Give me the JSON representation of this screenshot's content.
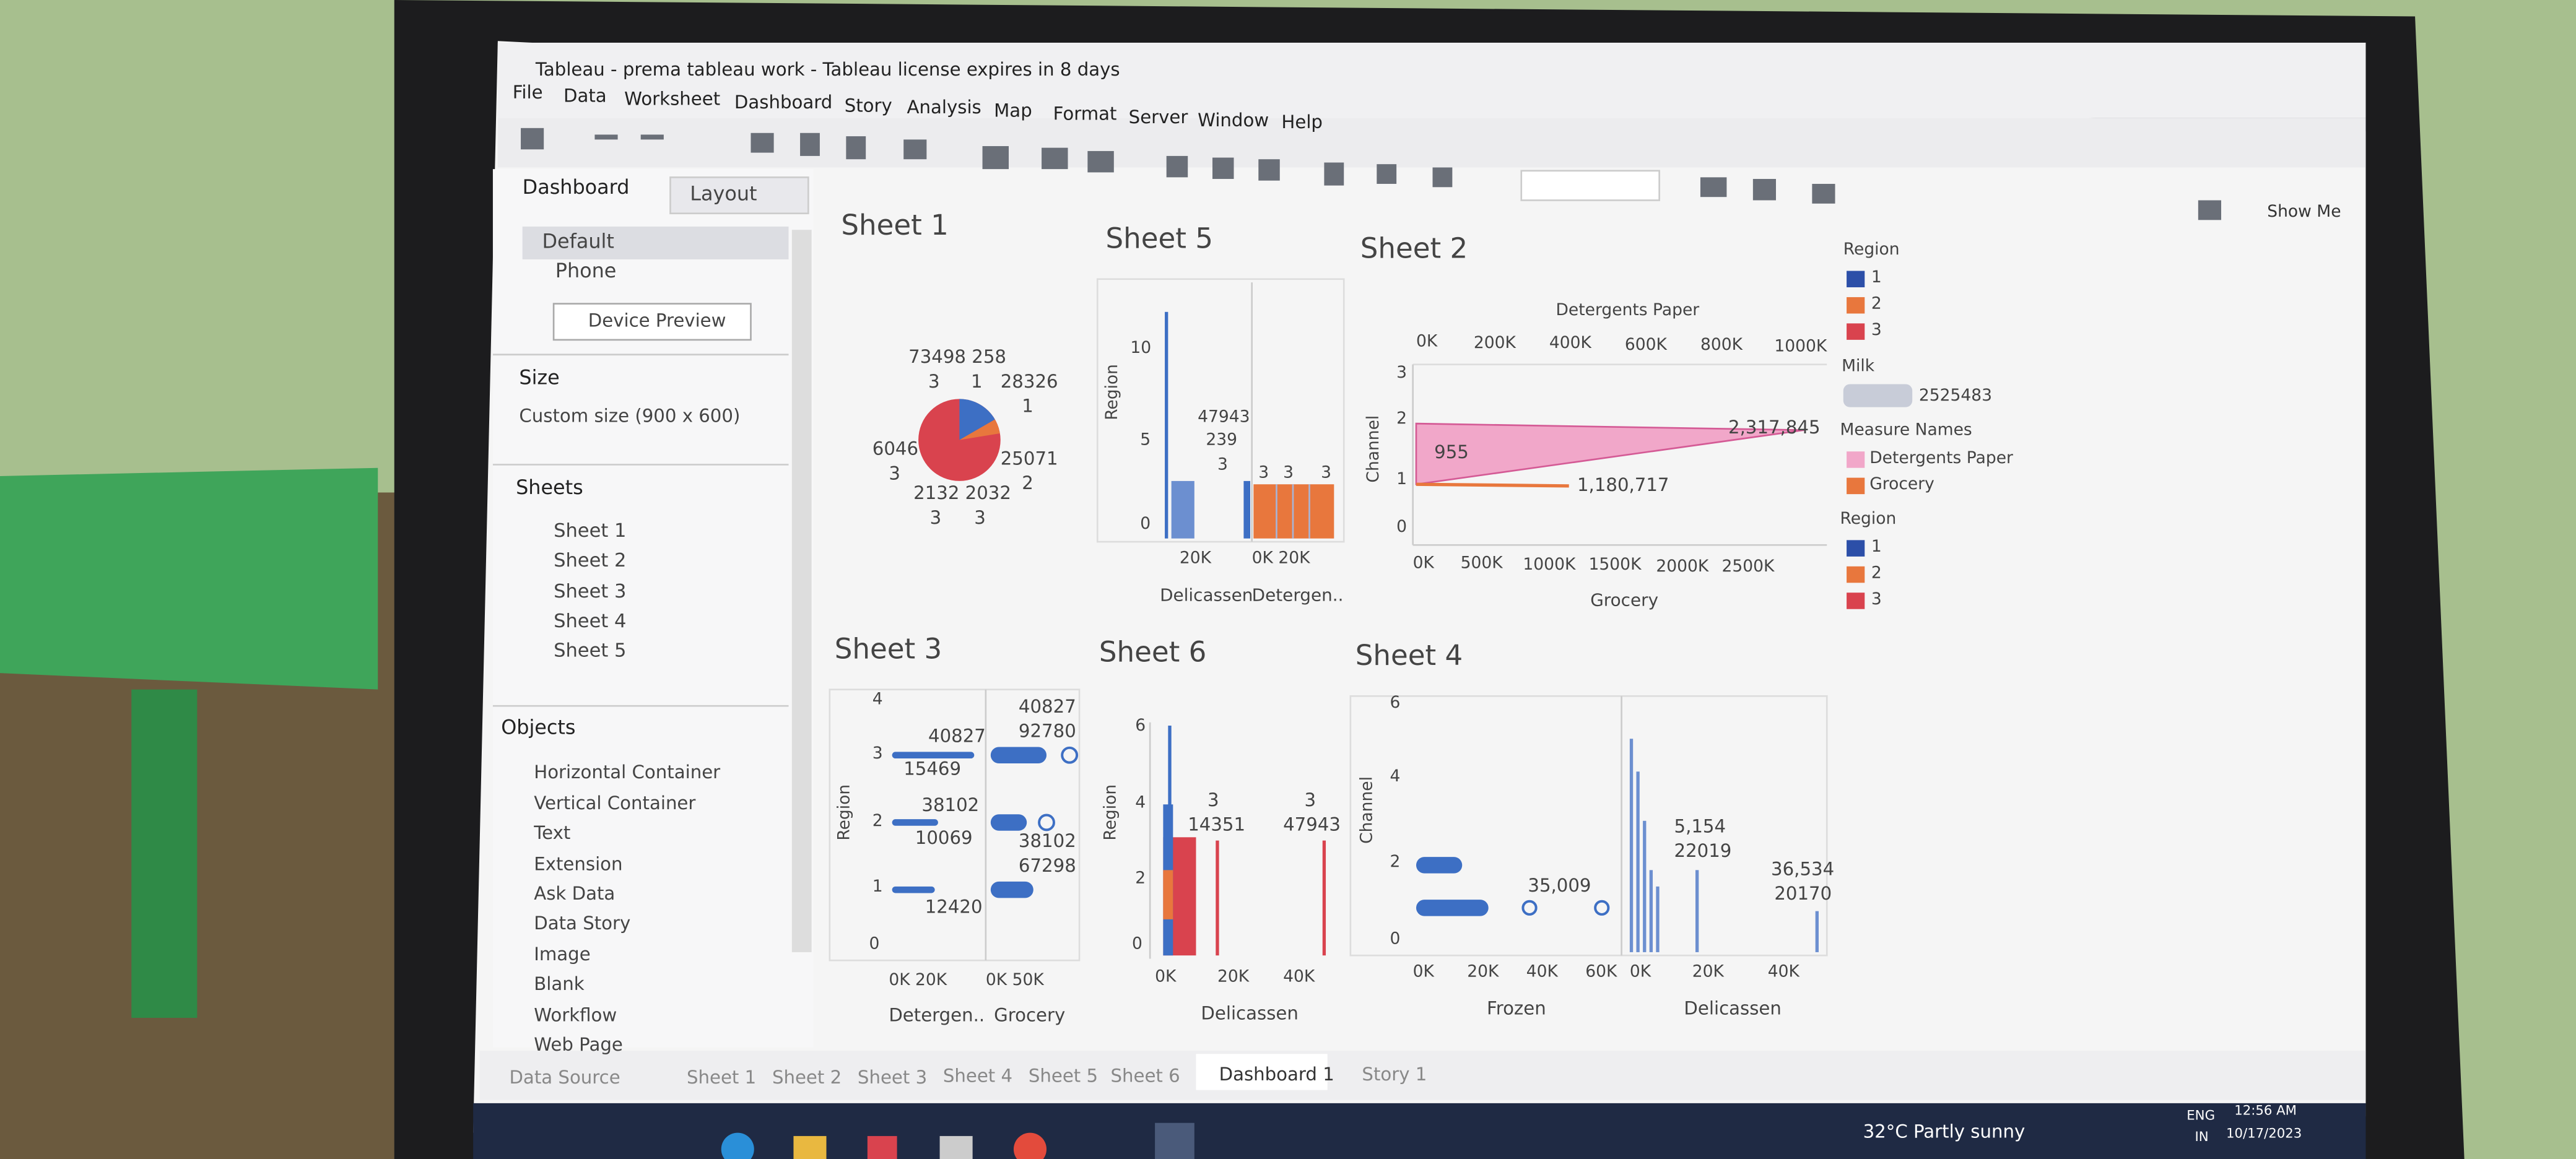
{
  "window": {
    "title": "Tableau - prema tableau work - Tableau license expires in 8 days",
    "menu": [
      "File",
      "Data",
      "Worksheet",
      "Dashboard",
      "Story",
      "Analysis",
      "Map",
      "Format",
      "Server",
      "Window",
      "Help"
    ],
    "show_me": "Show Me"
  },
  "side_panel": {
    "tabs": [
      "Dashboard",
      "Layout"
    ],
    "devices": [
      "Default",
      "Phone"
    ],
    "device_preview": "Device Preview",
    "size_heading": "Size",
    "size_value": "Custom size (900 x 600)",
    "sheets_heading": "Sheets",
    "sheets": [
      "Sheet 1",
      "Sheet 2",
      "Sheet 3",
      "Sheet 4",
      "Sheet 5"
    ],
    "objects_heading": "Objects",
    "objects": [
      "Horizontal Container",
      "Vertical Container",
      "Text",
      "Extension",
      "Ask Data",
      "Data Story",
      "Image",
      "Blank",
      "Workflow",
      "Web Page"
    ]
  },
  "sheet1": {
    "title": "Sheet 1",
    "labels": [
      "73498 258",
      "3",
      "1",
      "28326",
      "1",
      "6046",
      "3",
      "25071",
      "2",
      "2132 2032",
      "3",
      "3"
    ]
  },
  "sheet5": {
    "title": "Sheet 5",
    "y_label": "Region",
    "y_ticks": [
      "10",
      "5",
      "0"
    ],
    "labels": [
      "47943",
      "239",
      "3",
      "3",
      "3",
      "3"
    ],
    "x_ticks": [
      "20K",
      "0K 20K"
    ],
    "x_labels": [
      "Delicassen",
      "Detergen.."
    ]
  },
  "sheet2": {
    "title": "Sheet 2",
    "top_axis_label": "Detergents Paper",
    "top_ticks": [
      "0K",
      "200K",
      "400K",
      "600K",
      "800K",
      "1000K"
    ],
    "y_ticks": [
      "3",
      "2",
      "1",
      "0"
    ],
    "y_label": "Channel",
    "labels": [
      "955",
      "2,317,845",
      "1,180,717"
    ],
    "bottom_ticks": [
      "0K",
      "500K",
      "1000K",
      "1500K",
      "2000K",
      "2500K"
    ],
    "bottom_axis_label": "Grocery"
  },
  "legends": {
    "region_title": "Region",
    "region_items": [
      "1",
      "2",
      "3"
    ],
    "milk_title": "Milk",
    "milk_value": "2525483",
    "measure_title": "Measure Names",
    "measure_items": [
      "Detergents Paper",
      "Grocery"
    ],
    "region2_title": "Region",
    "region2_items": [
      "1",
      "2",
      "3"
    ]
  },
  "sheet3": {
    "title": "Sheet 3",
    "y_ticks": [
      "4",
      "3",
      "2",
      "1",
      "0"
    ],
    "y_label": "Region",
    "labels": [
      "40827",
      "15469",
      "38102",
      "10069",
      "12420",
      "40827",
      "92780",
      "38102",
      "67298"
    ],
    "x_ticks": [
      "0K 20K",
      "0K 50K"
    ],
    "x_labels": [
      "Detergen..",
      "Grocery"
    ]
  },
  "sheet6": {
    "title": "Sheet 6",
    "y_ticks": [
      "6",
      "4",
      "2",
      "0"
    ],
    "y_label": "Region",
    "labels": [
      "3",
      "14351",
      "3",
      "47943"
    ],
    "x_ticks": [
      "0K",
      "20K",
      "40K"
    ],
    "x_label": "Delicassen"
  },
  "sheet4": {
    "title": "Sheet 4",
    "y_ticks": [
      "6",
      "4",
      "2",
      "0"
    ],
    "y_label": "Channel",
    "labels": [
      "35,009",
      "5,154",
      "22019",
      "36,534",
      "20170"
    ],
    "x_ticks": [
      "0K",
      "20K",
      "40K",
      "60K",
      "0K",
      "20K",
      "40K"
    ],
    "x_labels": [
      "Frozen",
      "Delicassen"
    ]
  },
  "bottom_tabs": [
    "Data Source",
    "Sheet 1",
    "Sheet 2",
    "Sheet 3",
    "Sheet 4",
    "Sheet 5",
    "Sheet 6",
    "Dashboard 1",
    "Story 1"
  ],
  "taskbar": {
    "weather": "32°C Partly sunny",
    "lang": "ENG",
    "region": "IN",
    "time": "12:56 AM",
    "date": "10/17/2023"
  }
}
